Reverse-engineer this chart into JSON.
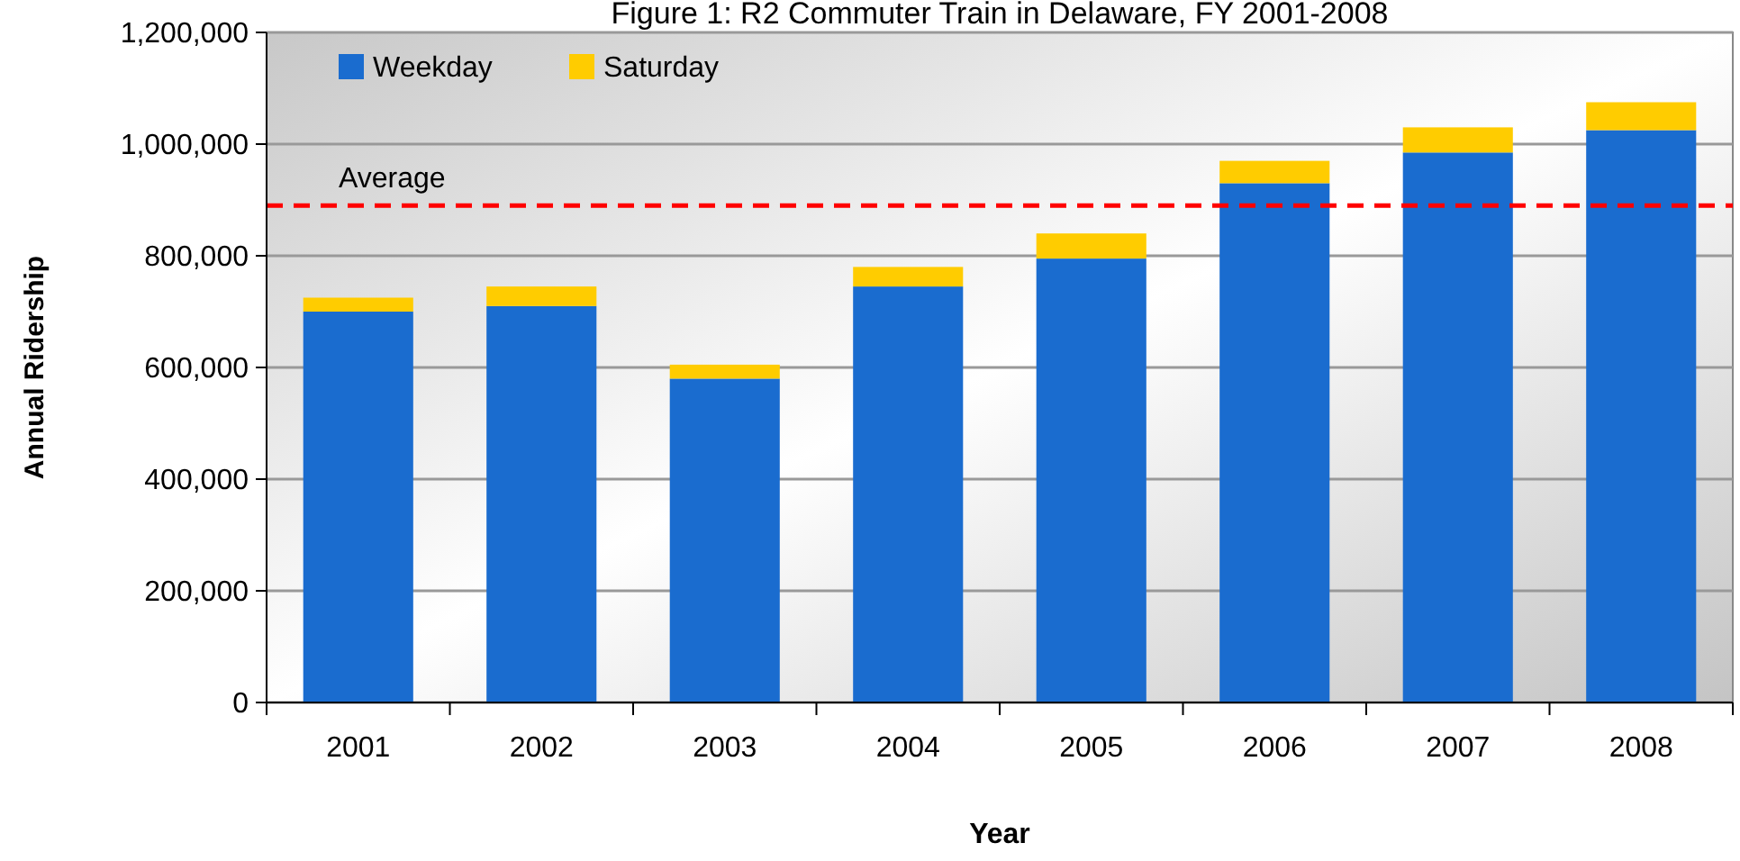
{
  "chart_data": {
    "type": "bar",
    "title": "Figure 1: R2 Commuter Train in Delaware, FY 2001-2008",
    "xlabel": "Year",
    "ylabel": "Annual Ridership",
    "categories": [
      "2001",
      "2002",
      "2003",
      "2004",
      "2005",
      "2006",
      "2007",
      "2008"
    ],
    "series": [
      {
        "name": "Weekday",
        "color": "#1a6ccf",
        "values": [
          700000,
          710000,
          580000,
          745000,
          795000,
          930000,
          985000,
          1025000
        ]
      },
      {
        "name": "Saturday",
        "color": "#ffcc00",
        "values": [
          25000,
          35000,
          25000,
          35000,
          45000,
          40000,
          45000,
          50000
        ]
      }
    ],
    "stacked": true,
    "ylim": [
      0,
      1200000
    ],
    "yticks": [
      0,
      {
        "value": 200000,
        "label": "200,000"
      },
      {
        "value": 400000,
        "label": "400,000"
      },
      {
        "value": 600000,
        "label": "600,000"
      },
      {
        "value": 800000,
        "label": "800,000"
      },
      {
        "value": 1000000,
        "label": "1,000,000"
      },
      {
        "value": 1200000,
        "label": "1,200,000"
      }
    ],
    "ref_lines": [
      {
        "axis": "y",
        "value": 890000,
        "label": "Average",
        "color": "#ff0000",
        "line_style": "dashed"
      }
    ],
    "grid": "y",
    "legend": "top left"
  }
}
